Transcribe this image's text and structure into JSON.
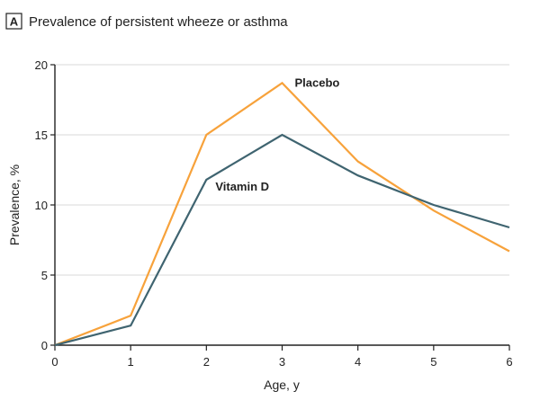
{
  "panel_label": "A",
  "chart_data": {
    "type": "line",
    "title": "Prevalence of persistent wheeze or asthma",
    "xlabel": "Age, y",
    "ylabel": "Prevalence, %",
    "x": [
      0,
      1,
      2,
      3,
      4,
      5,
      6
    ],
    "xlim": [
      0,
      6
    ],
    "ylim": [
      0,
      20
    ],
    "xticks": [
      "0",
      "1",
      "2",
      "3",
      "4",
      "5",
      "6"
    ],
    "yticks": [
      "0",
      "5",
      "10",
      "15",
      "20"
    ],
    "grid": "horizontal",
    "series": [
      {
        "name": "Placebo",
        "color": "#f7a23b",
        "values": [
          0,
          2.1,
          15.0,
          18.7,
          13.1,
          9.6,
          6.7
        ]
      },
      {
        "name": "Vitamin D",
        "color": "#3f6470",
        "values": [
          0,
          1.4,
          11.8,
          15.0,
          12.1,
          10.0,
          8.4
        ]
      }
    ]
  },
  "colors": {
    "placebo": "#f7a23b",
    "vitamin_d": "#3f6470",
    "grid": "#d8d8d8",
    "axis": "#222222"
  }
}
